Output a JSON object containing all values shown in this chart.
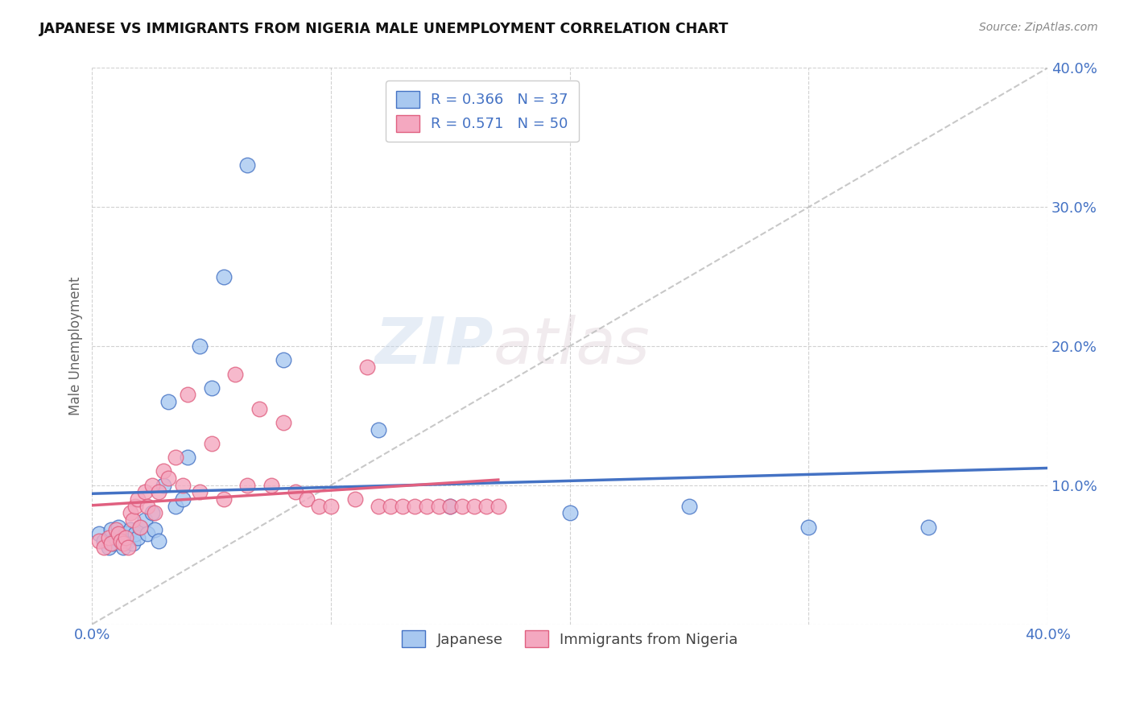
{
  "title": "JAPANESE VS IMMIGRANTS FROM NIGERIA MALE UNEMPLOYMENT CORRELATION CHART",
  "source": "Source: ZipAtlas.com",
  "ylabel": "Male Unemployment",
  "xlim": [
    0.0,
    0.4
  ],
  "ylim": [
    0.0,
    0.4
  ],
  "xticks": [
    0.0,
    0.1,
    0.2,
    0.3,
    0.4
  ],
  "yticks": [
    0.0,
    0.1,
    0.2,
    0.3,
    0.4
  ],
  "watermark_zip": "ZIP",
  "watermark_atlas": "atlas",
  "legend_label1": "Japanese",
  "legend_label2": "Immigrants from Nigeria",
  "R1": "0.366",
  "N1": "37",
  "R2": "0.571",
  "N2": "50",
  "color1": "#A8C8F0",
  "color2": "#F4A8C0",
  "line_color1": "#4472C4",
  "line_color2": "#E06080",
  "japanese_x": [
    0.003,
    0.005,
    0.007,
    0.008,
    0.009,
    0.01,
    0.011,
    0.012,
    0.013,
    0.014,
    0.015,
    0.016,
    0.017,
    0.018,
    0.019,
    0.02,
    0.022,
    0.023,
    0.025,
    0.026,
    0.028,
    0.03,
    0.032,
    0.035,
    0.038,
    0.04,
    0.045,
    0.05,
    0.055,
    0.065,
    0.08,
    0.12,
    0.15,
    0.2,
    0.25,
    0.3,
    0.35
  ],
  "japanese_y": [
    0.065,
    0.06,
    0.055,
    0.068,
    0.058,
    0.062,
    0.07,
    0.06,
    0.055,
    0.065,
    0.06,
    0.068,
    0.058,
    0.065,
    0.062,
    0.07,
    0.075,
    0.065,
    0.08,
    0.068,
    0.06,
    0.1,
    0.16,
    0.085,
    0.09,
    0.12,
    0.2,
    0.17,
    0.25,
    0.33,
    0.19,
    0.14,
    0.085,
    0.08,
    0.085,
    0.07,
    0.07
  ],
  "nigeria_x": [
    0.003,
    0.005,
    0.007,
    0.008,
    0.01,
    0.011,
    0.012,
    0.013,
    0.014,
    0.015,
    0.016,
    0.017,
    0.018,
    0.019,
    0.02,
    0.022,
    0.023,
    0.025,
    0.026,
    0.028,
    0.03,
    0.032,
    0.035,
    0.038,
    0.04,
    0.045,
    0.05,
    0.055,
    0.06,
    0.065,
    0.07,
    0.075,
    0.08,
    0.085,
    0.09,
    0.095,
    0.1,
    0.11,
    0.115,
    0.12,
    0.125,
    0.13,
    0.135,
    0.14,
    0.145,
    0.15,
    0.155,
    0.16,
    0.165,
    0.17
  ],
  "nigeria_y": [
    0.06,
    0.055,
    0.062,
    0.058,
    0.068,
    0.065,
    0.06,
    0.058,
    0.062,
    0.055,
    0.08,
    0.075,
    0.085,
    0.09,
    0.07,
    0.095,
    0.085,
    0.1,
    0.08,
    0.095,
    0.11,
    0.105,
    0.12,
    0.1,
    0.165,
    0.095,
    0.13,
    0.09,
    0.18,
    0.1,
    0.155,
    0.1,
    0.145,
    0.095,
    0.09,
    0.085,
    0.085,
    0.09,
    0.185,
    0.085,
    0.085,
    0.085,
    0.085,
    0.085,
    0.085,
    0.085,
    0.085,
    0.085,
    0.085,
    0.085
  ]
}
